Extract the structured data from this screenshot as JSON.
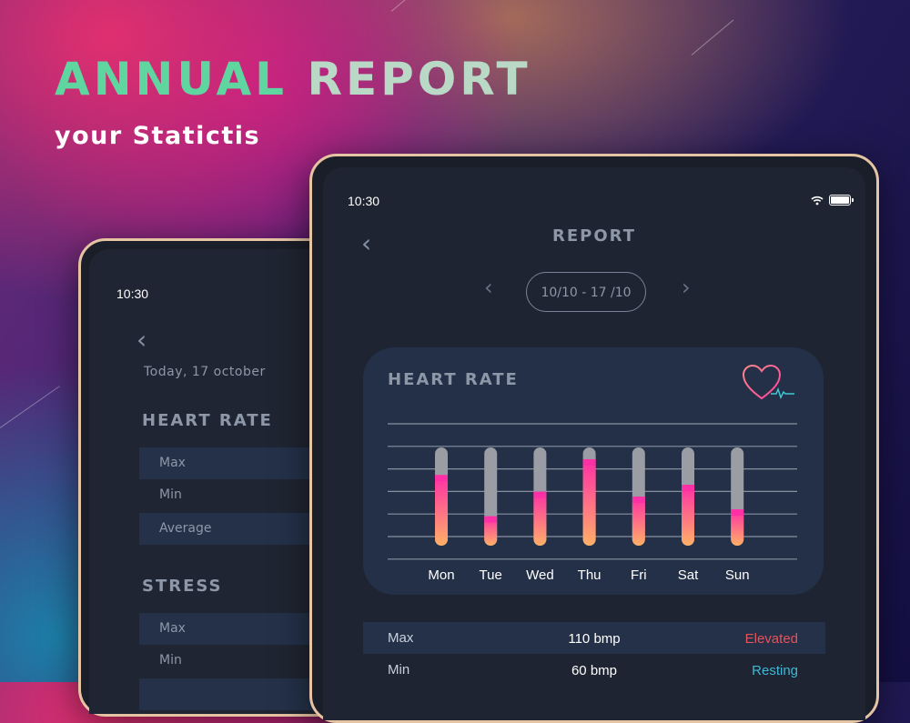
{
  "headline": {
    "word1": "ANNUAL",
    "word2": "REPORT",
    "subtitle": "your Statictis"
  },
  "back_tablet": {
    "time": "10:30",
    "date": "Today, 17 october",
    "heart_rate": {
      "title": "HEART RATE",
      "rows": [
        "Max",
        "Min",
        "Average"
      ]
    },
    "stress": {
      "title": "STRESS",
      "rows": [
        "Max",
        "Min"
      ]
    }
  },
  "front_tablet": {
    "time": "10:30",
    "title": "REPORT",
    "date_range": "10/10 - 17 /10",
    "card": {
      "title": "HEART RATE"
    },
    "stats": [
      {
        "label": "Max",
        "value": "110 bmp",
        "status": "Elevated",
        "status_color": "#e8525a"
      },
      {
        "label": "Min",
        "value": "60 bmp",
        "status": "Resting",
        "status_color": "#3fb8d6"
      }
    ]
  },
  "chart_data": {
    "type": "bar",
    "categories": [
      "Mon",
      "Tue",
      "Wed",
      "Thu",
      "Fri",
      "Sat",
      "Sun"
    ],
    "values": [
      72,
      30,
      55,
      88,
      50,
      62,
      37
    ],
    "ylim": [
      0,
      100
    ],
    "grid": true,
    "colors": {
      "track": "#9a9da4",
      "fill_top": "#ff2fa6",
      "fill_bottom": "#ffb067",
      "grid": "#8890a0",
      "label": "#ffffff"
    }
  }
}
